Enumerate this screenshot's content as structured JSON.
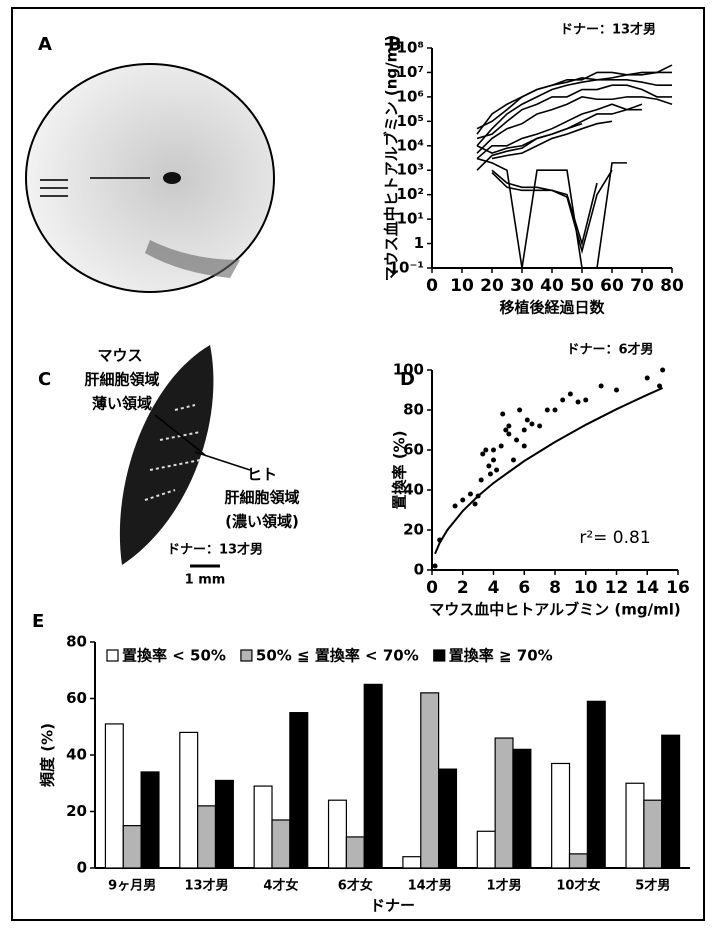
{
  "panels": [
    "A",
    "B",
    "C",
    "D",
    "E"
  ],
  "panel_c": {
    "mouse_label": [
      "マウス",
      "肝細胞領域",
      "薄い領域"
    ],
    "human_label": [
      "ヒト",
      "肝細胞領域",
      "(濃い領域)"
    ],
    "donor": "ドナー：13才男",
    "scale_bar": "1 mm"
  },
  "chart_data": [
    {
      "type": "line",
      "title": "ドナー：13才男",
      "xlabel": "移植後経過日数",
      "ylabel": "マウス血中ヒトアルブミン (ng/ml)",
      "log_y": true,
      "xlim": [
        0,
        80
      ],
      "xticks": [
        0,
        10,
        20,
        30,
        40,
        50,
        60,
        70,
        80
      ],
      "ylim": [
        0.1,
        100000000
      ],
      "yticks": [
        {
          "value": 0.1,
          "label": "10⁻¹"
        },
        1,
        {
          "value": 10,
          "label": "10¹"
        },
        {
          "value": 100,
          "label": "10²"
        },
        {
          "value": 1000,
          "label": "10³"
        },
        {
          "value": 10000,
          "label": "10⁴"
        },
        {
          "value": 100000,
          "label": "10⁵"
        },
        {
          "value": 1000000,
          "label": "10⁶"
        },
        {
          "value": 10000000,
          "label": "10⁷"
        },
        {
          "value": 100000000,
          "label": "10⁸"
        }
      ],
      "x": [
        15,
        20,
        25,
        30,
        35,
        40,
        45,
        50,
        55,
        60,
        65,
        70,
        75,
        80
      ],
      "series": [
        {
          "color": "#000000",
          "values": [
            30000,
            200000,
            500000,
            1000000,
            2000000,
            3000000,
            5000000,
            5000000,
            10000000,
            10000000,
            8000000,
            8000000,
            10000000,
            20000000
          ]
        },
        {
          "color": "#000000",
          "values": [
            50000,
            100000,
            300000,
            1000000,
            2000000,
            3000000,
            4000000,
            6000000,
            5000000,
            6000000,
            8000000,
            10000000,
            10000000,
            10000000
          ]
        },
        {
          "color": "#000000",
          "values": [
            10000,
            50000,
            200000,
            500000,
            1000000,
            2000000,
            3000000,
            4000000,
            5000000,
            5000000,
            5000000,
            4000000,
            3000000,
            3000000
          ]
        },
        {
          "color": "#000000",
          "values": [
            20000,
            30000,
            100000,
            300000,
            500000,
            1000000,
            1000000,
            2000000,
            2000000,
            3000000,
            3000000,
            2000000,
            1000000,
            1000000
          ]
        },
        {
          "color": "#000000",
          "values": [
            5000,
            20000,
            50000,
            80000,
            200000,
            300000,
            500000,
            1000000,
            800000,
            800000,
            1000000,
            1000000,
            800000,
            500000
          ]
        },
        {
          "color": "#000000",
          "values": [
            3000,
            10000,
            10000,
            20000,
            30000,
            50000,
            100000,
            200000,
            300000,
            500000,
            300000,
            300000,
            null,
            null
          ]
        },
        {
          "color": "#000000",
          "values": [
            10000,
            5000,
            8000,
            10000,
            20000,
            30000,
            50000,
            100000,
            200000,
            200000,
            300000,
            500000,
            null,
            null
          ]
        },
        {
          "color": "#000000",
          "values": [
            null,
            3000,
            4000,
            5000,
            10000,
            20000,
            30000,
            50000,
            80000,
            100000,
            null,
            null,
            null,
            null
          ]
        },
        {
          "color": "#000000",
          "values": [
            1000,
            4000,
            6000,
            8000,
            20000,
            30000,
            50000,
            80000,
            null,
            null,
            null,
            null,
            null,
            null
          ]
        },
        {
          "color": "#000000",
          "values": [
            null,
            1000,
            300,
            200,
            200,
            150,
            100,
            1,
            300,
            null,
            null,
            null,
            null,
            null
          ]
        },
        {
          "color": "#000000",
          "values": [
            null,
            800,
            200,
            150,
            150,
            150,
            80,
            0.5,
            100,
            1000,
            null,
            null,
            null,
            null
          ]
        },
        {
          "color": "#000000",
          "values": [
            3000,
            2000,
            1000,
            0.1,
            1000,
            1000,
            1000,
            0.1,
            0.1,
            2000,
            2000,
            null,
            null,
            null
          ]
        }
      ]
    },
    {
      "type": "scatter",
      "title": "ドナー：6才男",
      "xlabel": "マウス血中ヒトアルブミン (mg/ml)",
      "ylabel": "置換率 (%)",
      "annotation": "r²= 0.81",
      "xlim": [
        0,
        16
      ],
      "xticks": [
        0,
        2,
        4,
        6,
        8,
        10,
        12,
        14,
        16
      ],
      "ylim": [
        0,
        100
      ],
      "yticks": [
        0,
        20,
        40,
        60,
        80,
        100
      ],
      "color": "#000000",
      "points": {
        "x": [
          0.2,
          0.5,
          1.5,
          2,
          2.5,
          2.8,
          3,
          3.2,
          3.3,
          3.5,
          3.7,
          3.8,
          4,
          4,
          4.2,
          4.5,
          4.6,
          4.8,
          5,
          5,
          5.3,
          5.5,
          5.7,
          6,
          6,
          6.2,
          6.5,
          7,
          7.5,
          8,
          8.5,
          9,
          9.5,
          10,
          11,
          12,
          14,
          14.8,
          15
        ],
        "y": [
          2,
          15,
          32,
          35,
          38,
          33,
          37,
          45,
          58,
          60,
          52,
          48,
          55,
          60,
          50,
          62,
          78,
          70,
          68,
          72,
          55,
          65,
          80,
          62,
          70,
          75,
          73,
          72,
          80,
          80,
          85,
          88,
          84,
          85,
          92,
          90,
          96,
          92,
          100
        ]
      },
      "fit": {
        "x": [
          0.2,
          0.5,
          1,
          2,
          3,
          4,
          5,
          6,
          8,
          10,
          12,
          14,
          15
        ],
        "y": [
          8.1,
          13.6,
          20,
          29.5,
          37,
          43.5,
          49,
          54.5,
          64,
          72.6,
          80.4,
          87.6,
          91
        ]
      }
    },
    {
      "type": "bar",
      "xlabel": "ドナー",
      "ylabel": "頻度 (%)",
      "categories": [
        "9ヶ月男",
        "13才男",
        "4才女",
        "6才女",
        "14才男",
        "1才男",
        "10才女",
        "5才男"
      ],
      "ylim": [
        0,
        80
      ],
      "yticks": [
        0,
        20,
        40,
        60,
        80
      ],
      "legend": "top",
      "series": [
        {
          "name": "置換率 < 50%",
          "color": "#ffffff",
          "values": [
            51,
            48,
            29,
            24,
            4,
            13,
            37,
            30
          ]
        },
        {
          "name": "50% ≦ 置換率 < 70%",
          "color": "#b4b4b4",
          "values": [
            15,
            22,
            17,
            11,
            62,
            46,
            5,
            24
          ]
        },
        {
          "name": "置換率 ≧ 70%",
          "color": "#000000",
          "values": [
            34,
            31,
            55,
            65,
            35,
            42,
            59,
            47
          ]
        }
      ]
    }
  ]
}
